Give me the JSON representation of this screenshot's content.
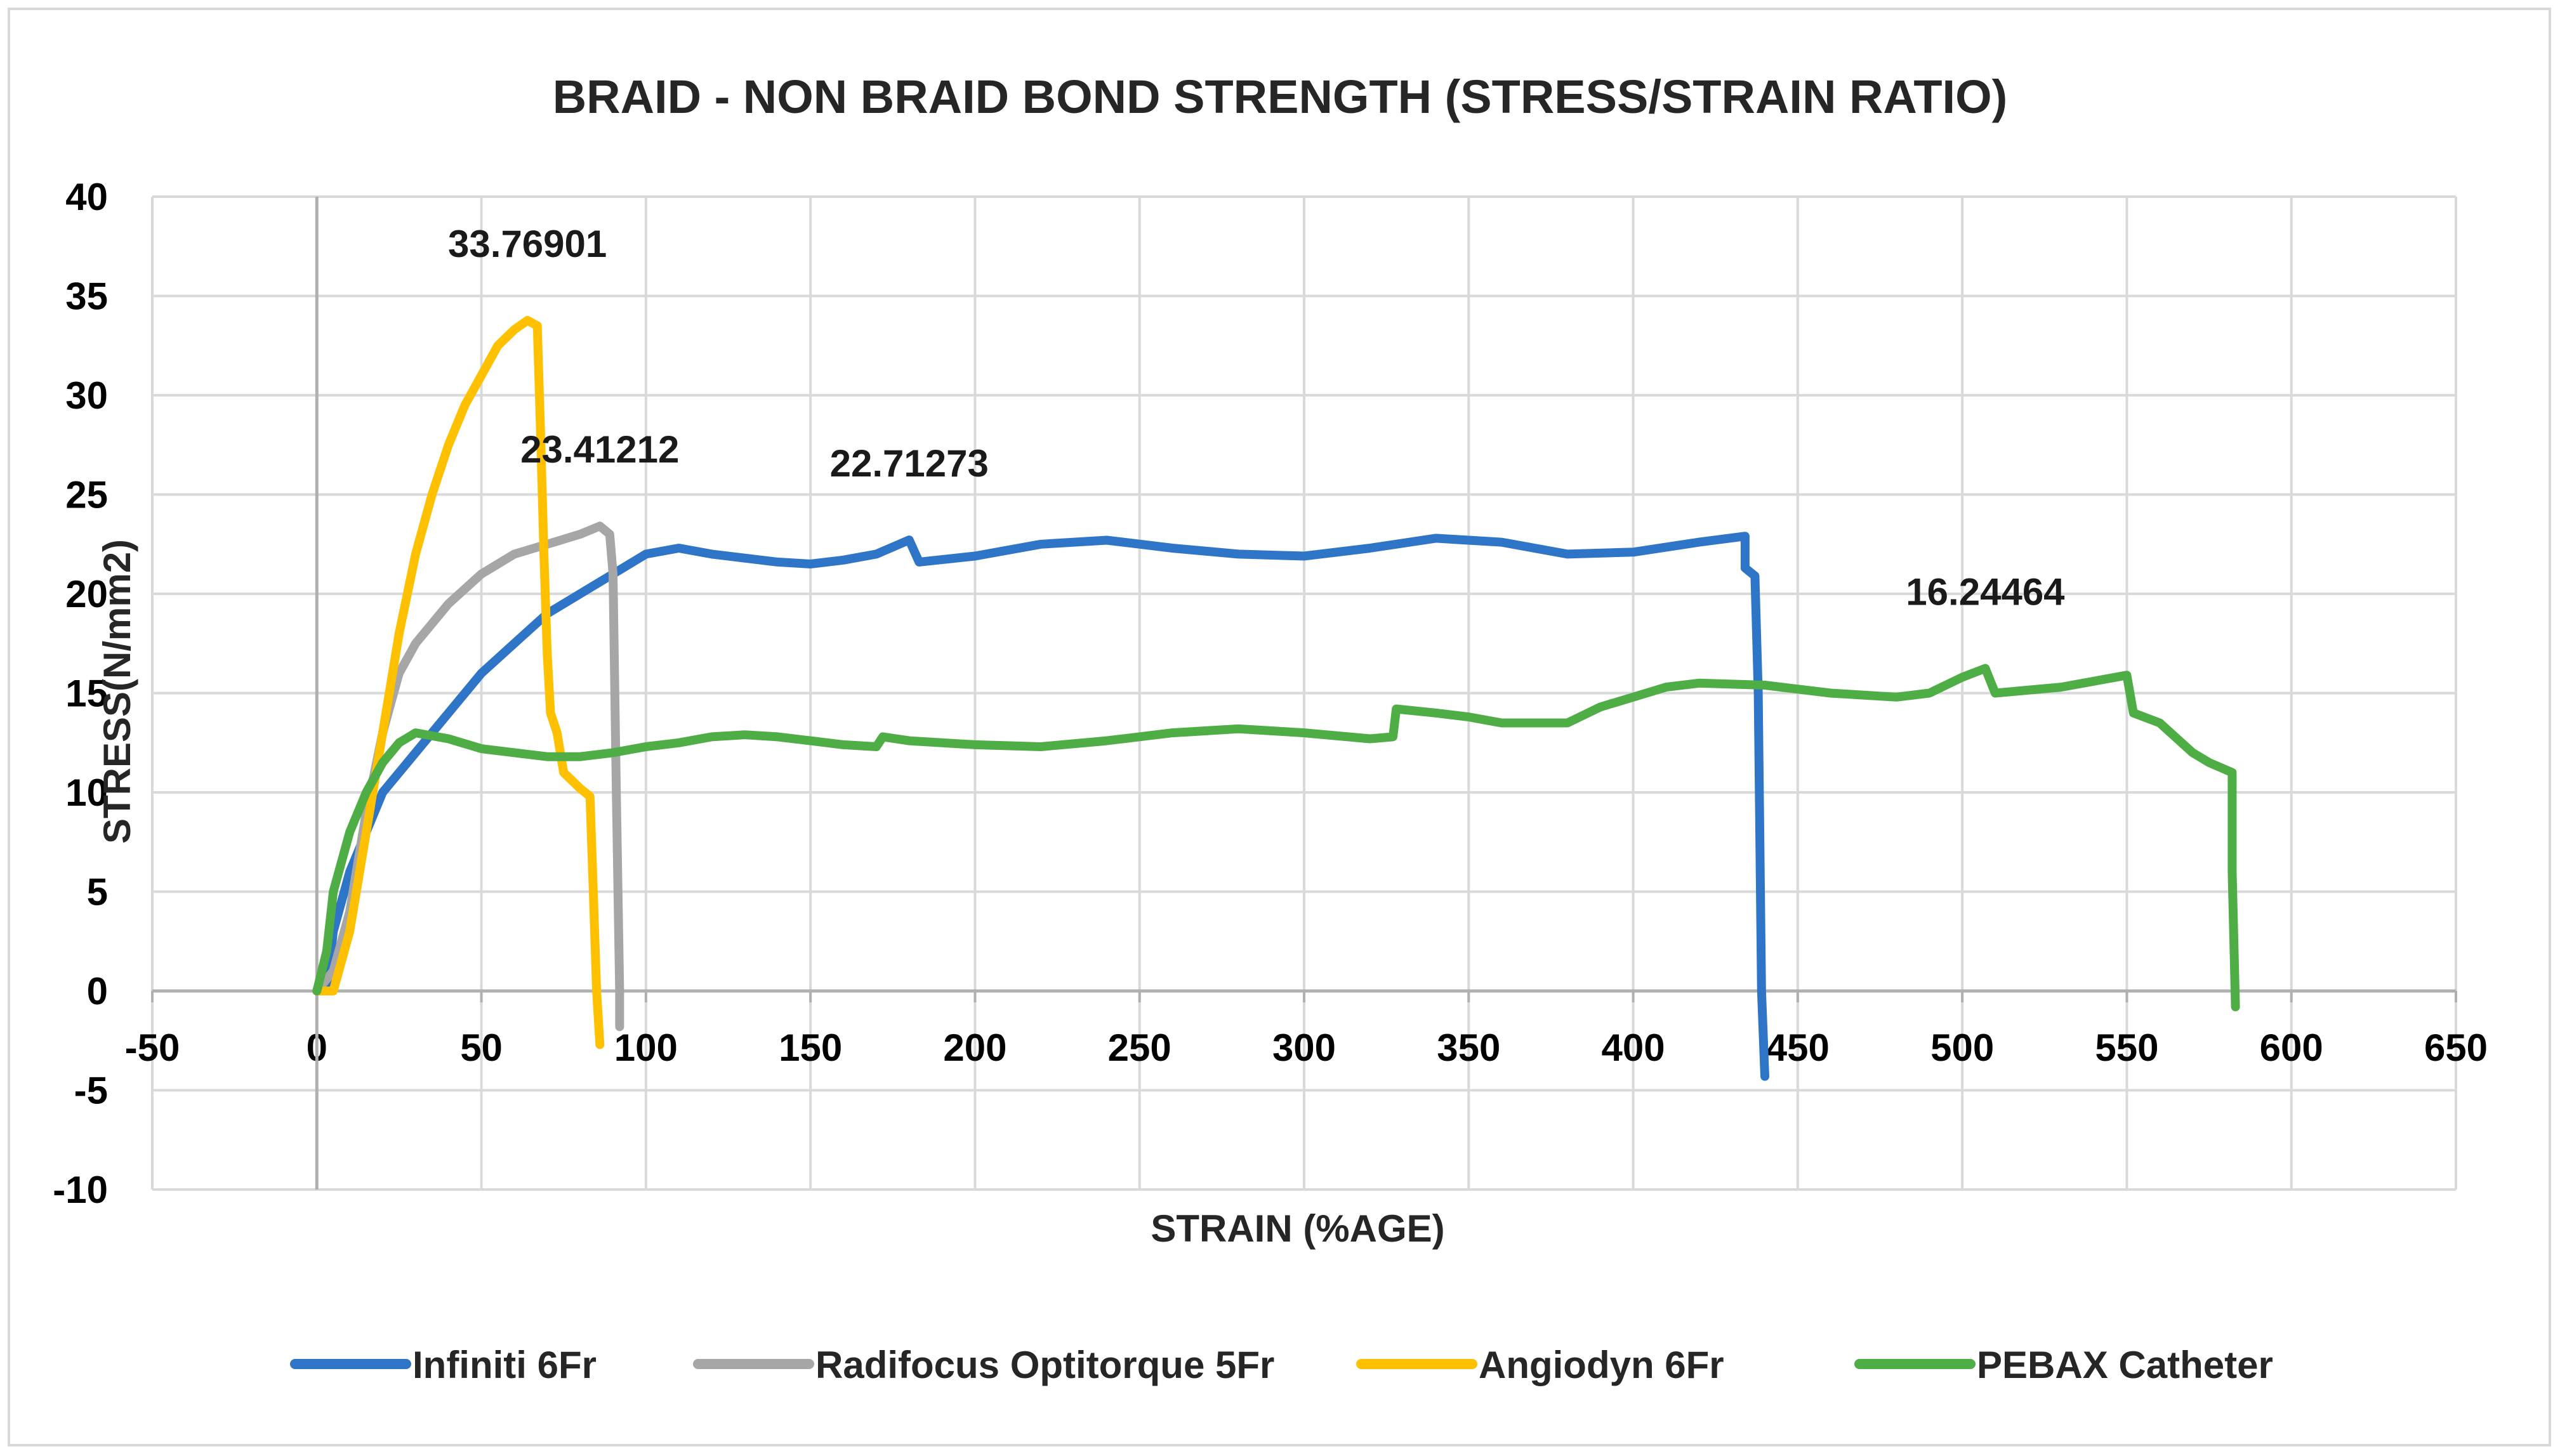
{
  "chart_data": {
    "type": "line",
    "title": "BRAID - NON BRAID BOND STRENGTH (STRESS/STRAIN RATIO)",
    "xlabel": "STRAIN (%AGE)",
    "ylabel": "STRESS(N/mm2)",
    "xlim": [
      -50,
      650
    ],
    "ylim": [
      -10,
      40
    ],
    "x_ticks": [
      -50,
      0,
      50,
      100,
      150,
      200,
      250,
      300,
      350,
      400,
      450,
      500,
      550,
      600,
      650
    ],
    "y_ticks": [
      -10,
      -5,
      0,
      5,
      10,
      15,
      20,
      25,
      30,
      35,
      40
    ],
    "grid": "on",
    "legend": "bottom",
    "series": [
      {
        "name": "Infiniti 6Fr",
        "color": "#2e75c8",
        "points": [
          [
            0,
            0
          ],
          [
            3,
            0
          ],
          [
            5,
            3
          ],
          [
            10,
            6
          ],
          [
            15,
            8
          ],
          [
            20,
            10
          ],
          [
            30,
            12
          ],
          [
            40,
            14
          ],
          [
            50,
            16
          ],
          [
            60,
            17.5
          ],
          [
            70,
            19
          ],
          [
            80,
            20
          ],
          [
            90,
            21
          ],
          [
            100,
            22
          ],
          [
            110,
            22.3
          ],
          [
            120,
            22
          ],
          [
            130,
            21.8
          ],
          [
            140,
            21.6
          ],
          [
            150,
            21.5
          ],
          [
            160,
            21.7
          ],
          [
            170,
            22
          ],
          [
            180,
            22.71273
          ],
          [
            183,
            21.6
          ],
          [
            200,
            21.9
          ],
          [
            220,
            22.5
          ],
          [
            240,
            22.7
          ],
          [
            260,
            22.3
          ],
          [
            280,
            22
          ],
          [
            300,
            21.9
          ],
          [
            320,
            22.3
          ],
          [
            340,
            22.8
          ],
          [
            360,
            22.6
          ],
          [
            380,
            22
          ],
          [
            400,
            22.1
          ],
          [
            420,
            22.6
          ],
          [
            434,
            22.9
          ],
          [
            434,
            21.3
          ],
          [
            437,
            20.9
          ],
          [
            438,
            15
          ],
          [
            439,
            0
          ],
          [
            440,
            -4.3
          ]
        ],
        "label": {
          "text": "22.71273",
          "x": 180,
          "y": 22.71273
        }
      },
      {
        "name": "Radifocus Optitorque 5Fr",
        "color": "#a6a6a6",
        "points": [
          [
            0,
            0
          ],
          [
            5,
            1
          ],
          [
            10,
            4
          ],
          [
            15,
            9
          ],
          [
            20,
            13
          ],
          [
            25,
            16
          ],
          [
            30,
            17.5
          ],
          [
            40,
            19.5
          ],
          [
            50,
            21
          ],
          [
            60,
            22
          ],
          [
            70,
            22.5
          ],
          [
            80,
            23
          ],
          [
            86,
            23.41212
          ],
          [
            89,
            23
          ],
          [
            90,
            21
          ],
          [
            91,
            10
          ],
          [
            92,
            0
          ],
          [
            92,
            -1.8
          ]
        ],
        "label": {
          "text": "23.41212",
          "x": 86,
          "y": 23.41212
        }
      },
      {
        "name": "Angiodyn 6Fr",
        "color": "#ffc000",
        "points": [
          [
            0,
            0
          ],
          [
            5,
            0
          ],
          [
            10,
            3
          ],
          [
            15,
            8
          ],
          [
            20,
            13
          ],
          [
            25,
            18
          ],
          [
            30,
            22
          ],
          [
            35,
            25
          ],
          [
            40,
            27.5
          ],
          [
            45,
            29.5
          ],
          [
            50,
            31
          ],
          [
            55,
            32.5
          ],
          [
            60,
            33.3
          ],
          [
            64,
            33.76901
          ],
          [
            67,
            33.5
          ],
          [
            68,
            28
          ],
          [
            69,
            22
          ],
          [
            70,
            17
          ],
          [
            71,
            14
          ],
          [
            73,
            13
          ],
          [
            75,
            11
          ],
          [
            80,
            10.2
          ],
          [
            83,
            9.8
          ],
          [
            84,
            5
          ],
          [
            85,
            0
          ],
          [
            86,
            -2.7
          ]
        ],
        "label": {
          "text": "33.76901",
          "x": 64,
          "y": 33.76901
        }
      },
      {
        "name": "PEBAX Catheter",
        "color": "#4ead44",
        "points": [
          [
            0,
            0
          ],
          [
            3,
            2
          ],
          [
            5,
            5
          ],
          [
            10,
            8
          ],
          [
            15,
            10
          ],
          [
            20,
            11.5
          ],
          [
            25,
            12.5
          ],
          [
            30,
            13
          ],
          [
            40,
            12.7
          ],
          [
            50,
            12.2
          ],
          [
            60,
            12
          ],
          [
            70,
            11.8
          ],
          [
            80,
            11.8
          ],
          [
            90,
            12
          ],
          [
            100,
            12.3
          ],
          [
            110,
            12.5
          ],
          [
            120,
            12.8
          ],
          [
            130,
            12.9
          ],
          [
            140,
            12.8
          ],
          [
            150,
            12.6
          ],
          [
            160,
            12.4
          ],
          [
            170,
            12.3
          ],
          [
            172,
            12.8
          ],
          [
            180,
            12.6
          ],
          [
            200,
            12.4
          ],
          [
            220,
            12.3
          ],
          [
            240,
            12.6
          ],
          [
            260,
            13
          ],
          [
            280,
            13.2
          ],
          [
            300,
            13
          ],
          [
            320,
            12.7
          ],
          [
            327,
            12.8
          ],
          [
            328,
            14.2
          ],
          [
            340,
            14
          ],
          [
            350,
            13.8
          ],
          [
            360,
            13.5
          ],
          [
            380,
            13.5
          ],
          [
            390,
            14.3
          ],
          [
            400,
            14.8
          ],
          [
            410,
            15.3
          ],
          [
            420,
            15.5
          ],
          [
            440,
            15.4
          ],
          [
            460,
            15
          ],
          [
            480,
            14.8
          ],
          [
            490,
            15
          ],
          [
            500,
            15.8
          ],
          [
            507,
            16.24464
          ],
          [
            510,
            15
          ],
          [
            530,
            15.3
          ],
          [
            550,
            15.9
          ],
          [
            552,
            14
          ],
          [
            560,
            13.5
          ],
          [
            570,
            12
          ],
          [
            575,
            11.5
          ],
          [
            582,
            11
          ],
          [
            582,
            6
          ],
          [
            583,
            -0.8
          ]
        ],
        "label": {
          "text": "16.24464",
          "x": 507,
          "y": 16.24464
        }
      }
    ]
  }
}
